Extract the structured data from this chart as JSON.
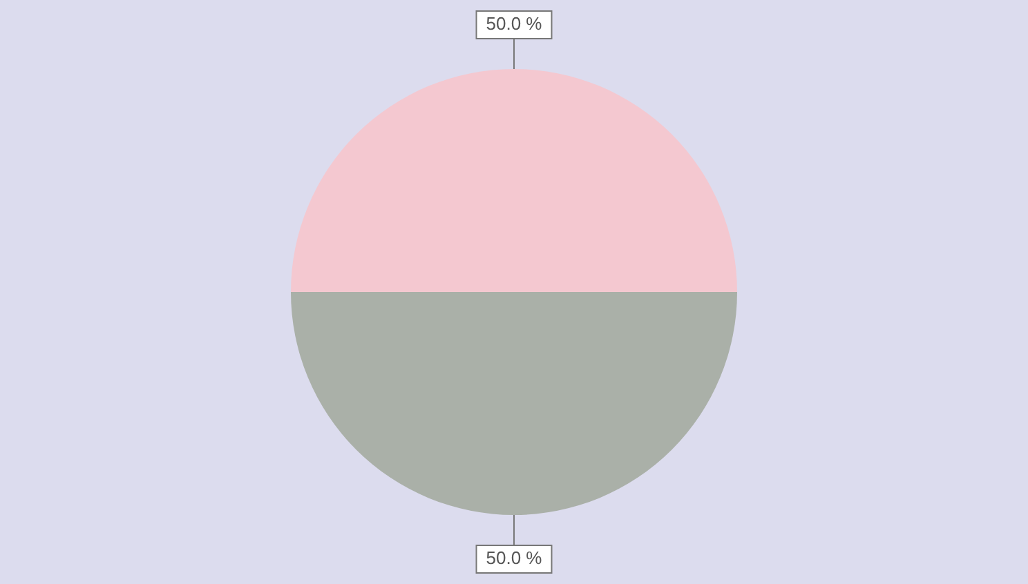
{
  "chart_data": {
    "type": "pie",
    "categories": [
      null,
      null
    ],
    "values": [
      50,
      50
    ],
    "colors": [
      "#f4c8d0",
      "#aab0a8"
    ],
    "value_labels": [
      "50.0 %",
      "50.0 %"
    ],
    "legend": false
  }
}
